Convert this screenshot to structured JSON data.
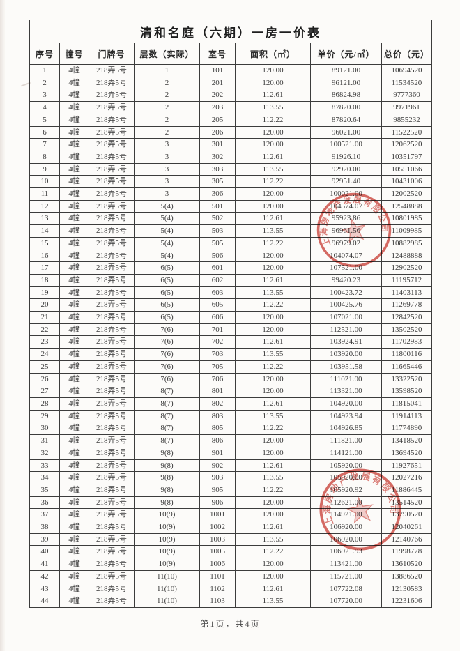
{
  "title": "清和名庭（六期）一房一价表",
  "table": {
    "headers": [
      "序号",
      "幢号",
      "门牌号",
      "层数（实际）",
      "室号",
      "面积（㎡）",
      "单价（元/㎡）",
      "总价（元）"
    ],
    "rows": [
      [
        "1",
        "4幢",
        "218弄5号",
        "1",
        "101",
        "120.00",
        "89121.00",
        "10694520"
      ],
      [
        "2",
        "4幢",
        "218弄5号",
        "2",
        "201",
        "120.00",
        "96121.00",
        "11534520"
      ],
      [
        "3",
        "4幢",
        "218弄5号",
        "2",
        "202",
        "112.61",
        "86824.98",
        "9777360"
      ],
      [
        "4",
        "4幢",
        "218弄5号",
        "2",
        "203",
        "113.55",
        "87820.00",
        "9971961"
      ],
      [
        "5",
        "4幢",
        "218弄5号",
        "2",
        "205",
        "112.22",
        "87820.64",
        "9855232"
      ],
      [
        "6",
        "4幢",
        "218弄5号",
        "2",
        "206",
        "120.00",
        "96021.00",
        "11522520"
      ],
      [
        "7",
        "4幢",
        "218弄5号",
        "3",
        "301",
        "120.00",
        "100521.00",
        "12062520"
      ],
      [
        "8",
        "4幢",
        "218弄5号",
        "3",
        "302",
        "112.61",
        "91926.10",
        "10351797"
      ],
      [
        "9",
        "4幢",
        "218弄5号",
        "3",
        "303",
        "113.55",
        "92920.00",
        "10551066"
      ],
      [
        "10",
        "4幢",
        "218弄5号",
        "3",
        "305",
        "112.22",
        "92951.40",
        "10431006"
      ],
      [
        "11",
        "4幢",
        "218弄5号",
        "3",
        "306",
        "120.00",
        "100021.00",
        "12002520"
      ],
      [
        "12",
        "4幢",
        "218弄5号",
        "5(4)",
        "501",
        "120.00",
        "104574.07",
        "12548888"
      ],
      [
        "13",
        "4幢",
        "218弄5号",
        "5(4)",
        "502",
        "112.61",
        "95923.86",
        "10801985"
      ],
      [
        "14",
        "4幢",
        "218弄5号",
        "5(4)",
        "503",
        "113.55",
        "96961.56",
        "11009985"
      ],
      [
        "15",
        "4幢",
        "218弄5号",
        "5(4)",
        "505",
        "112.22",
        "96979.02",
        "10882985"
      ],
      [
        "16",
        "4幢",
        "218弄5号",
        "5(4)",
        "506",
        "120.00",
        "104074.07",
        "12488888"
      ],
      [
        "17",
        "4幢",
        "218弄5号",
        "6(5)",
        "601",
        "120.00",
        "107521.00",
        "12902520"
      ],
      [
        "18",
        "4幢",
        "218弄5号",
        "6(5)",
        "602",
        "112.61",
        "99420.23",
        "11195712"
      ],
      [
        "19",
        "4幢",
        "218弄5号",
        "6(5)",
        "603",
        "113.55",
        "100423.72",
        "11403113"
      ],
      [
        "20",
        "4幢",
        "218弄5号",
        "6(5)",
        "605",
        "112.22",
        "100425.76",
        "11269778"
      ],
      [
        "21",
        "4幢",
        "218弄5号",
        "6(5)",
        "606",
        "120.00",
        "107021.00",
        "12842520"
      ],
      [
        "22",
        "4幢",
        "218弄5号",
        "7(6)",
        "701",
        "120.00",
        "112521.00",
        "13502520"
      ],
      [
        "23",
        "4幢",
        "218弄5号",
        "7(6)",
        "702",
        "112.61",
        "103924.91",
        "11702983"
      ],
      [
        "24",
        "4幢",
        "218弄5号",
        "7(6)",
        "703",
        "113.55",
        "103920.00",
        "11800116"
      ],
      [
        "25",
        "4幢",
        "218弄5号",
        "7(6)",
        "705",
        "112.22",
        "103951.58",
        "11665446"
      ],
      [
        "26",
        "4幢",
        "218弄5号",
        "7(6)",
        "706",
        "120.00",
        "111021.00",
        "13322520"
      ],
      [
        "27",
        "4幢",
        "218弄5号",
        "8(7)",
        "801",
        "120.00",
        "113321.00",
        "13598520"
      ],
      [
        "28",
        "4幢",
        "218弄5号",
        "8(7)",
        "802",
        "112.61",
        "104920.00",
        "11815041"
      ],
      [
        "29",
        "4幢",
        "218弄5号",
        "8(7)",
        "803",
        "113.55",
        "104923.94",
        "11914113"
      ],
      [
        "30",
        "4幢",
        "218弄5号",
        "8(7)",
        "805",
        "112.22",
        "104926.85",
        "11774890"
      ],
      [
        "31",
        "4幢",
        "218弄5号",
        "8(7)",
        "806",
        "120.00",
        "111821.00",
        "13418520"
      ],
      [
        "32",
        "4幢",
        "218弄5号",
        "9(8)",
        "901",
        "120.00",
        "114121.00",
        "13694520"
      ],
      [
        "33",
        "4幢",
        "218弄5号",
        "9(8)",
        "902",
        "112.61",
        "105920.00",
        "11927651"
      ],
      [
        "34",
        "4幢",
        "218弄5号",
        "9(8)",
        "903",
        "113.55",
        "105920.00",
        "12027216"
      ],
      [
        "35",
        "4幢",
        "218弄5号",
        "9(8)",
        "905",
        "112.22",
        "105920.92",
        "11886445"
      ],
      [
        "36",
        "4幢",
        "218弄5号",
        "9(8)",
        "906",
        "120.00",
        "112621.00",
        "13514520"
      ],
      [
        "37",
        "4幢",
        "218弄5号",
        "10(9)",
        "1001",
        "120.00",
        "114921.00",
        "13790520"
      ],
      [
        "38",
        "4幢",
        "218弄5号",
        "10(9)",
        "1002",
        "112.61",
        "106920.00",
        "12040261"
      ],
      [
        "39",
        "4幢",
        "218弄5号",
        "10(9)",
        "1003",
        "113.55",
        "106920.00",
        "12140766"
      ],
      [
        "40",
        "4幢",
        "218弄5号",
        "10(9)",
        "1005",
        "112.22",
        "106921.93",
        "11998778"
      ],
      [
        "41",
        "4幢",
        "218弄5号",
        "10(9)",
        "1006",
        "120.00",
        "113421.00",
        "13610520"
      ],
      [
        "42",
        "4幢",
        "218弄5号",
        "11(10)",
        "1101",
        "120.00",
        "115721.00",
        "13886520"
      ],
      [
        "43",
        "4幢",
        "218弄5号",
        "11(10)",
        "1102",
        "112.61",
        "107722.08",
        "12130583"
      ],
      [
        "44",
        "4幢",
        "218弄5号",
        "11(10)",
        "1103",
        "113.55",
        "107720.00",
        "12231606"
      ]
    ]
  },
  "footer": {
    "page_indicator": "第1页，共4页"
  },
  "stamps": [
    {
      "arc_text": "上海房地产发展有限公司"
    },
    {
      "arc_text": "上海房地产发展有限公司"
    }
  ],
  "colors": {
    "stamp_red": "#cf4b43",
    "table_border": "#3c3c3c",
    "ink": "#222222",
    "page_bg": "#fcfbf9"
  }
}
